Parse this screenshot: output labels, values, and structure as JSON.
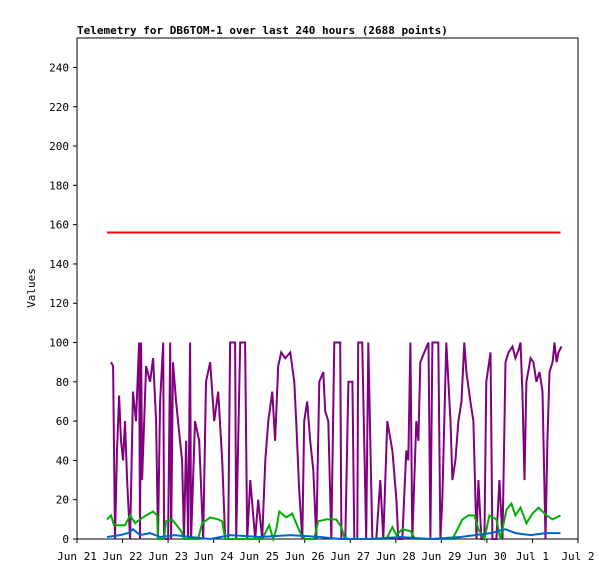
{
  "chart_data": {
    "type": "line",
    "title": "Telemetry for DB6TOM-1 over last 240 hours (2688 points)",
    "y_label": "Values",
    "xlim": [
      0,
      264
    ],
    "xticks": [
      {
        "value": 0,
        "label": "Jun 21"
      },
      {
        "value": 24,
        "label": "Jun 22"
      },
      {
        "value": 48,
        "label": "Jun 23"
      },
      {
        "value": 72,
        "label": "Jun 24"
      },
      {
        "value": 96,
        "label": "Jun 25"
      },
      {
        "value": 120,
        "label": "Jun 26"
      },
      {
        "value": 144,
        "label": "Jun 27"
      },
      {
        "value": 168,
        "label": "Jun 28"
      },
      {
        "value": 192,
        "label": "Jun 29"
      },
      {
        "value": 216,
        "label": "Jun 30"
      },
      {
        "value": 240,
        "label": "Jul 1"
      },
      {
        "value": 264,
        "label": "Jul 2"
      }
    ],
    "ylim": [
      0,
      255
    ],
    "yticks": [
      0,
      20,
      40,
      60,
      80,
      100,
      120,
      140,
      160,
      180,
      200,
      220,
      240
    ],
    "series": [
      {
        "color": "#800080",
        "x": [
          17.9,
          19.0,
          20.0,
          21.1,
          22.2,
          23.2,
          24.3,
          25.3,
          26.4,
          28.0,
          29.5,
          31.1,
          32.7,
          33.2,
          33.8,
          34.3,
          36.4,
          38.5,
          40.1,
          41.7,
          42.7,
          43.8,
          45.4,
          45.9,
          48.0,
          49.1,
          49.6,
          50.6,
          52.2,
          54.3,
          55.4,
          56.4,
          57.5,
          58.6,
          59.6,
          60.1,
          62.2,
          64.4,
          66.5,
          68.0,
          70.2,
          72.3,
          74.4,
          76.5,
          78.1,
          79.7,
          80.7,
          83.3,
          83.9,
          86.0,
          88.6,
          89.7,
          91.3,
          93.9,
          95.5,
          97.6,
          99.2,
          100.8,
          102.9,
          104.4,
          106.0,
          107.6,
          109.7,
          112.4,
          114.5,
          115.5,
          117.1,
          118.7,
          119.7,
          121.3,
          122.9,
          124.5,
          126.1,
          127.7,
          129.8,
          130.8,
          132.4,
          134.0,
          135.6,
          138.7,
          139.3,
          141.4,
          143.0,
          145.1,
          146.1,
          147.7,
          148.2,
          150.3,
          152.4,
          153.5,
          155.6,
          157.7,
          159.8,
          161.4,
          163.5,
          166.2,
          168.3,
          169.3,
          171.4,
          173.5,
          174.6,
          175.7,
          176.7,
          178.8,
          179.9,
          180.9,
          183.0,
          185.2,
          186.2,
          187.3,
          190.4,
          191.5,
          192.5,
          194.6,
          196.8,
          197.8,
          199.4,
          201.0,
          202.6,
          204.1,
          205.2,
          207.3,
          208.9,
          210.5,
          211.5,
          213.1,
          214.7,
          215.7,
          217.9,
          218.9,
          221.0,
          222.6,
          224.2,
          225.8,
          227.4,
          229.5,
          231.0,
          232.6,
          233.7,
          234.7,
          235.8,
          236.8,
          239.0,
          240.5,
          242.1,
          243.7,
          245.3,
          246.9,
          247.9,
          249.0,
          250.6,
          251.6,
          252.7,
          253.7,
          255.3
        ],
        "values": [
          90,
          88,
          0,
          45,
          73,
          50,
          40,
          60,
          30,
          0,
          75,
          60,
          100,
          0,
          100,
          30,
          88,
          80,
          92,
          60,
          0,
          70,
          100,
          0,
          0,
          100,
          0,
          90,
          70,
          50,
          40,
          0,
          50,
          0,
          100,
          0,
          60,
          50,
          0,
          80,
          90,
          60,
          75,
          40,
          0,
          0,
          100,
          100,
          0,
          100,
          100,
          0,
          30,
          0,
          20,
          0,
          40,
          60,
          75,
          50,
          88,
          95,
          92,
          95,
          80,
          60,
          25,
          0,
          60,
          70,
          50,
          35,
          0,
          80,
          85,
          65,
          60,
          0,
          100,
          100,
          0,
          0,
          80,
          80,
          0,
          0,
          100,
          100,
          0,
          100,
          0,
          0,
          30,
          0,
          60,
          45,
          20,
          0,
          0,
          45,
          40,
          100,
          0,
          60,
          50,
          90,
          95,
          100,
          0,
          100,
          100,
          0,
          20,
          100,
          60,
          30,
          40,
          60,
          70,
          100,
          85,
          70,
          60,
          0,
          30,
          0,
          0,
          80,
          95,
          0,
          0,
          30,
          0,
          90,
          95,
          98,
          92,
          96,
          100,
          75,
          30,
          80,
          92,
          90,
          80,
          85,
          75,
          0,
          50,
          85,
          90,
          100,
          90,
          95,
          98
        ]
      },
      {
        "color": "#00b000",
        "x": [
          15.8,
          17.9,
          19.5,
          25.3,
          28.0,
          30.6,
          33.2,
          36.4,
          40.1,
          42.2,
          42.7,
          45.9,
          46.9,
          50.1,
          54.9,
          56.4,
          63.8,
          65.9,
          70.2,
          74.4,
          76.5,
          78.1,
          97.6,
          101.3,
          103.4,
          105.0,
          106.6,
          110.2,
          113.4,
          115.5,
          118.2,
          120.3,
          125.0,
          127.1,
          131.3,
          136.6,
          139.3,
          140.8,
          143.0,
          163.0,
          166.2,
          168.3,
          171.4,
          175.7,
          178.3,
          197.8,
          200.5,
          203.1,
          206.3,
          209.4,
          211.5,
          214.7,
          217.3,
          221.0,
          223.1,
          226.3,
          228.9,
          231.0,
          233.7,
          236.8,
          240.0,
          243.2,
          247.4,
          250.6,
          254.8
        ],
        "values": [
          10,
          12,
          7,
          7,
          12,
          8,
          10,
          12,
          14,
          12,
          0,
          0,
          9,
          10,
          4,
          0,
          0,
          8,
          11,
          10,
          9,
          0,
          0,
          7,
          0,
          5,
          14,
          11,
          13,
          8,
          2,
          0,
          0,
          9,
          10,
          10,
          6,
          1,
          0,
          0,
          6,
          2,
          5,
          4,
          0,
          0,
          5,
          10,
          12,
          12,
          5,
          0,
          12,
          10,
          0,
          15,
          18,
          12,
          16,
          8,
          13,
          16,
          12,
          10,
          12
        ]
      },
      {
        "color": "#0066cc",
        "x": [
          15.8,
          22.7,
          26.9,
          29.5,
          33.2,
          38.5,
          43.8,
          51.7,
          59.6,
          70.2,
          80.7,
          96.5,
          112.4,
          128.2,
          138.7,
          154.6,
          170.4,
          186.2,
          202.0,
          217.9,
          225.8,
          231.0,
          239.0,
          246.9,
          254.8
        ],
        "values": [
          1,
          2,
          3,
          5,
          2,
          3,
          1,
          2,
          1,
          0,
          2,
          1,
          2,
          1,
          0,
          0,
          1,
          0,
          1,
          3,
          5,
          3,
          2,
          3,
          3
        ]
      },
      {
        "color": "#ff0000",
        "x": [
          15.8,
          254.8
        ],
        "values": [
          156,
          156
        ]
      }
    ]
  }
}
